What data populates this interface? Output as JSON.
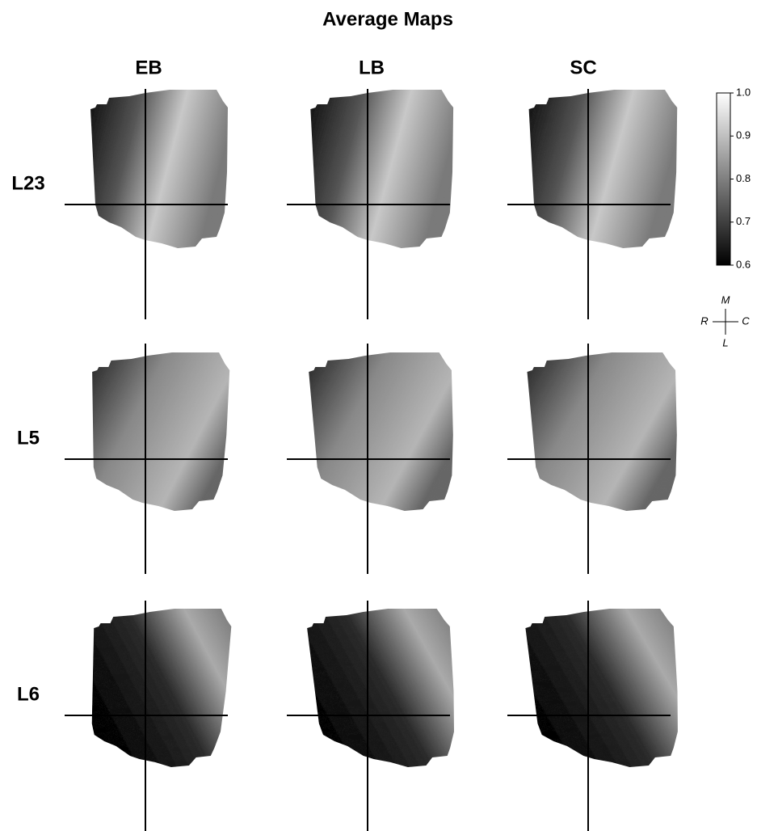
{
  "title": "Average Maps",
  "columns": [
    "EB",
    "LB",
    "SC"
  ],
  "rows": [
    "L23",
    "L5",
    "L6"
  ],
  "colorbar": {
    "lim": [
      0.6,
      1
    ],
    "ticks": [
      0.6,
      0.7,
      0.8,
      0.9,
      {
        "value": 1,
        "label": "1.0"
      }
    ]
  },
  "orientation": {
    "top": "M",
    "left": "R",
    "right": "C",
    "bottom": "L"
  }
}
